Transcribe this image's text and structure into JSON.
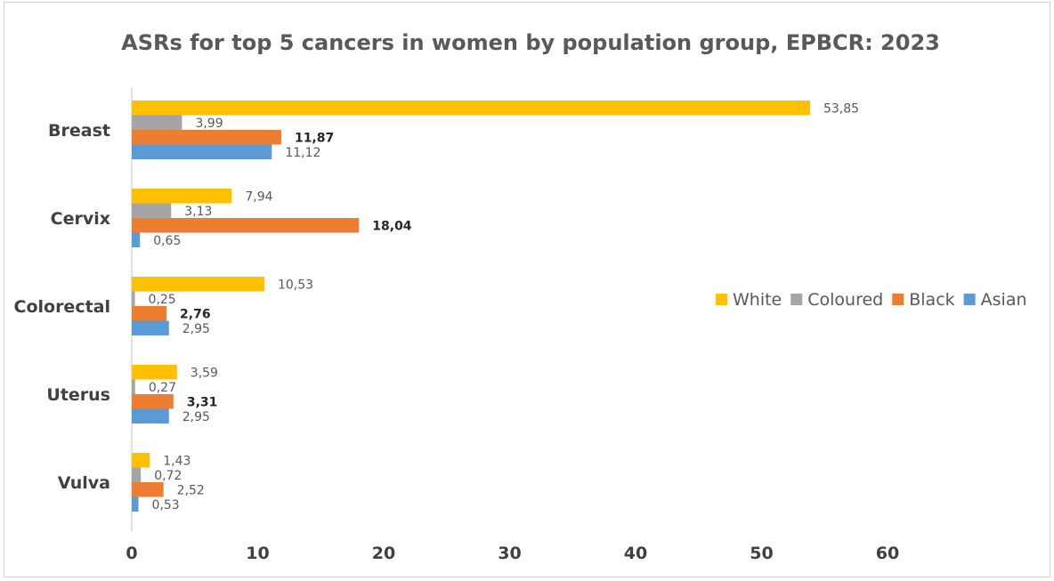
{
  "chart_data": {
    "type": "bar",
    "orientation": "horizontal",
    "title": "ASRs for top 5 cancers in women by population group, EPBCR: 2023",
    "xlabel": "",
    "ylabel": "",
    "categories": [
      "Breast",
      "Cervix",
      "Colorectal",
      "Uterus",
      "Vulva"
    ],
    "series": [
      {
        "name": "White",
        "color": "#FFC000",
        "values": [
          53.85,
          7.94,
          10.53,
          3.59,
          1.43
        ],
        "labels": [
          "53,85",
          "7,94",
          "10,53",
          "3,59",
          "1,43"
        ]
      },
      {
        "name": "Coloured",
        "color": "#A5A5A5",
        "values": [
          3.99,
          3.13,
          0.25,
          0.27,
          0.72
        ],
        "labels": [
          "3,99",
          "3,13",
          "0,25",
          "0,27",
          "0,72"
        ]
      },
      {
        "name": "Black",
        "color": "#ED7D31",
        "values": [
          11.87,
          18.04,
          2.76,
          3.31,
          2.52
        ],
        "labels": [
          "11,87",
          "18,04",
          "2,76",
          "3,31",
          "2,52"
        ]
      },
      {
        "name": "Asian",
        "color": "#5B9BD5",
        "values": [
          11.12,
          0.65,
          2.95,
          2.95,
          0.53
        ],
        "labels": [
          "11,12",
          "0,65",
          "2,95",
          "2,95",
          "0,53"
        ]
      }
    ],
    "bold_labels": {
      "Black": [
        0,
        1,
        2,
        3
      ]
    },
    "xlim": [
      0,
      60
    ],
    "xticks": [
      "0",
      "10",
      "20",
      "30",
      "40",
      "50",
      "60"
    ],
    "grid": false,
    "legend": {
      "position": "right",
      "entries": [
        "White",
        "Coloured",
        "Black",
        "Asian"
      ]
    }
  }
}
